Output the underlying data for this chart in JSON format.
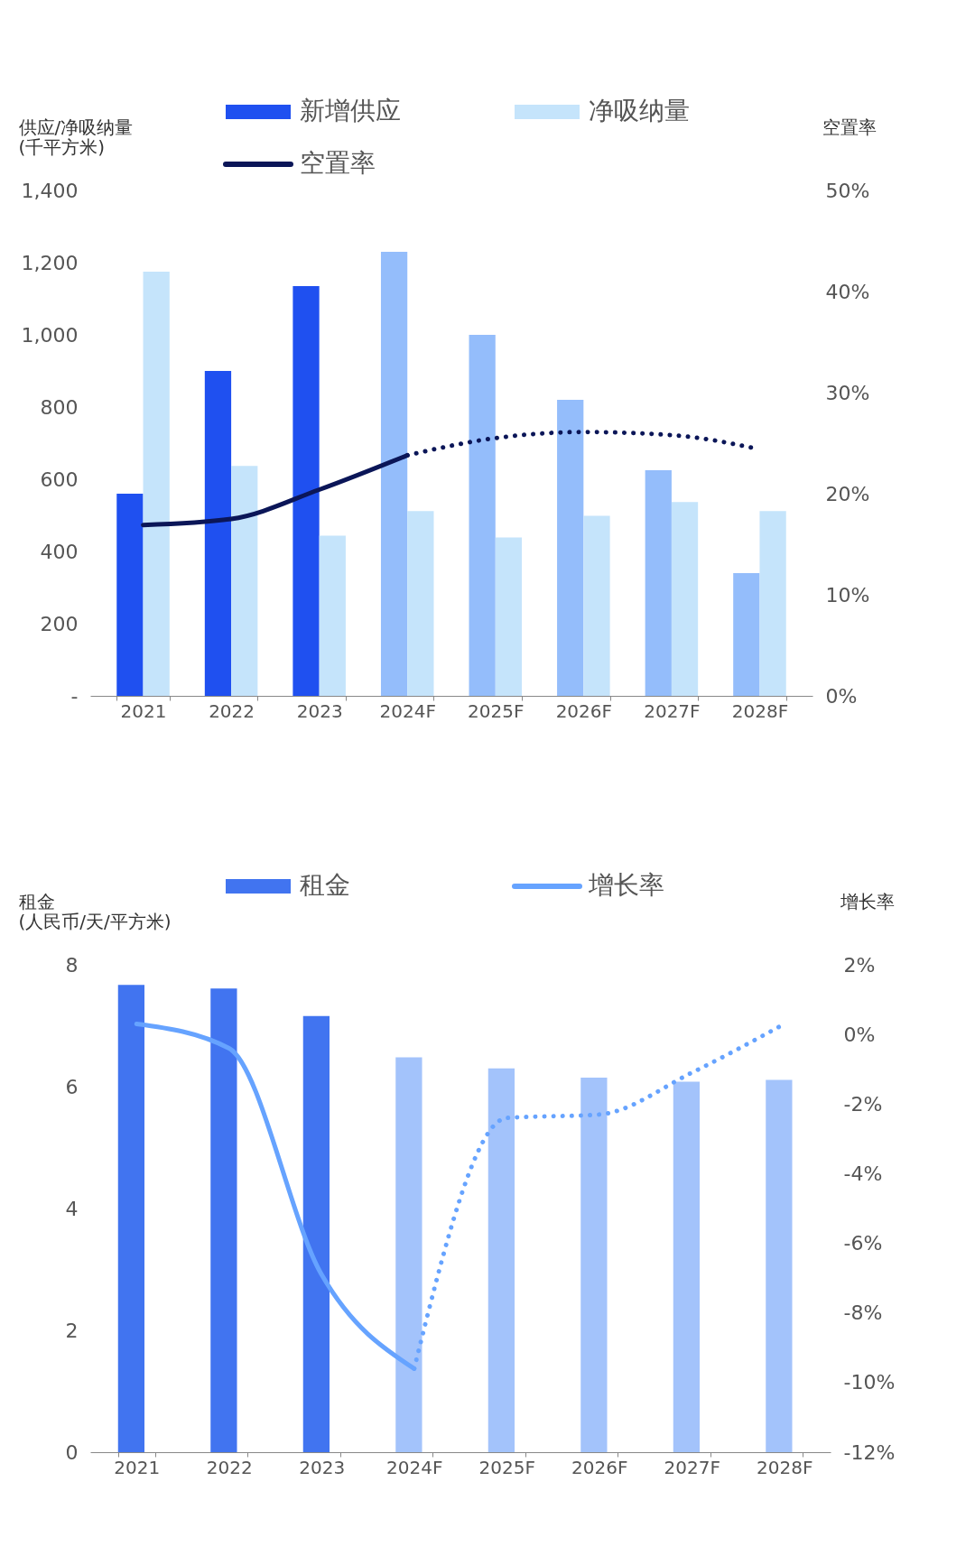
{
  "chart_data": [
    {
      "type": "bar",
      "categories": [
        "2021",
        "2022",
        "2023",
        "2024F",
        "2025F",
        "2026F",
        "2027F",
        "2028F"
      ],
      "ylabel": "供应/净吸纳量\n(千平方米)",
      "y2label": "空置率",
      "ylim": [
        0,
        1400
      ],
      "yticks": [
        {
          "value": 0,
          "label": "-"
        },
        {
          "value": 200,
          "label": "200"
        },
        {
          "value": 400,
          "label": "400"
        },
        {
          "value": 600,
          "label": "600"
        },
        {
          "value": 800,
          "label": "800"
        },
        {
          "value": 1000,
          "label": "1,000"
        },
        {
          "value": 1200,
          "label": "1,200"
        },
        {
          "value": 1400,
          "label": "1,400"
        }
      ],
      "y2lim": [
        0,
        50
      ],
      "y2ticks": [
        {
          "value": 0,
          "label": "0%"
        },
        {
          "value": 10,
          "label": "10%"
        },
        {
          "value": 20,
          "label": "20%"
        },
        {
          "value": 30,
          "label": "30%"
        },
        {
          "value": 40,
          "label": "40%"
        },
        {
          "value": 50,
          "label": "50%"
        }
      ],
      "legend": "top",
      "grid": false,
      "series": [
        {
          "name": "新增供应",
          "type": "bar",
          "colors": [
            "#1f50f0",
            "#1f50f0",
            "#1f50f0",
            "#94bdfb",
            "#94bdfb",
            "#94bdfb",
            "#94bdfb",
            "#94bdfb"
          ],
          "values": [
            560,
            900,
            1135,
            1230,
            1000,
            820,
            625,
            340
          ]
        },
        {
          "name": "净吸纳量",
          "type": "bar",
          "color": "#c5e4fb",
          "values": [
            1175,
            637,
            444,
            512,
            439,
            499,
            537,
            512
          ]
        },
        {
          "name": "空置率",
          "type": "line",
          "axis": "y2",
          "color": "#0b1658",
          "line_style": "solid",
          "values": [
            16.9,
            17.5,
            20.4,
            23.8,
            null,
            null,
            null,
            null
          ]
        },
        {
          "type": "line",
          "axis": "y2",
          "color": "#0b1658",
          "line_style": "dotted",
          "values": [
            null,
            null,
            null,
            23.8,
            25.5,
            26.1,
            25.8,
            24.4
          ]
        }
      ]
    },
    {
      "type": "bar",
      "categories": [
        "2021",
        "2022",
        "2023",
        "2024F",
        "2025F",
        "2026F",
        "2027F",
        "2028F"
      ],
      "ylabel": "租金\n(人民币/天/平方米)",
      "y2label": "增长率",
      "ylim": [
        0,
        8
      ],
      "yticks": [
        0,
        2,
        4,
        6,
        8
      ],
      "y2lim": [
        -12,
        2
      ],
      "y2ticks": [
        {
          "value": -12,
          "label": "-12%"
        },
        {
          "value": -10,
          "label": "-10%"
        },
        {
          "value": -8,
          "label": "-8%"
        },
        {
          "value": -6,
          "label": "-6%"
        },
        {
          "value": -4,
          "label": "-4%"
        },
        {
          "value": -2,
          "label": "-2%"
        },
        {
          "value": 0,
          "label": "0%"
        },
        {
          "value": 2,
          "label": "2%"
        }
      ],
      "legend": "top",
      "grid": false,
      "series": [
        {
          "name": "租金",
          "type": "bar",
          "colors": [
            "#4174f0",
            "#4174f0",
            "#4174f0",
            "#a3c3fb",
            "#a3c3fb",
            "#a3c3fb",
            "#a3c3fb",
            "#a3c3fb"
          ],
          "values": [
            7.67,
            7.61,
            7.16,
            6.48,
            6.3,
            6.15,
            6.08,
            6.11
          ]
        },
        {
          "name": "增长率",
          "type": "line",
          "axis": "y2",
          "color": "#66a3ff",
          "line_style": "solid",
          "values": [
            0.3,
            -0.4,
            -6.9,
            -9.6,
            null,
            null,
            null,
            null
          ]
        },
        {
          "type": "line",
          "axis": "y2",
          "color": "#66a3ff",
          "line_style": "dotted",
          "values": [
            null,
            null,
            null,
            -9.6,
            -2.4,
            -2.3,
            -1.1,
            0.3
          ]
        }
      ]
    }
  ]
}
